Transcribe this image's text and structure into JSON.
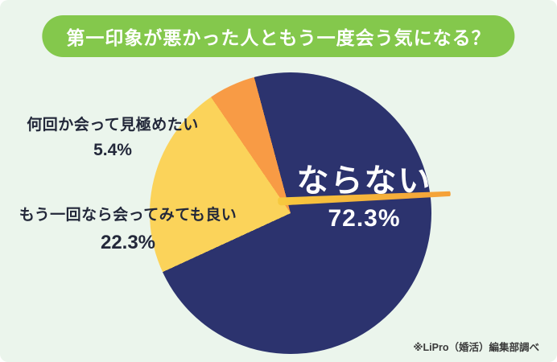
{
  "page": {
    "background_color": "#ebf5ec",
    "accent_color": "#84c84c",
    "source_note": "※LiPro（婚活）編集部調べ"
  },
  "header": {
    "title": "第一印象が悪かった人ともう一度会う気になる？"
  },
  "chart_data": {
    "type": "pie",
    "title": "第一印象が悪かった人ともう一度会う気になる？",
    "unit": "%",
    "start_angle_deg": -15,
    "direction": "clockwise",
    "legend_position": "labels-outside",
    "segments": [
      {
        "label": "ならない",
        "value": 72.3,
        "display": "72.3%",
        "color": "#2c336e",
        "label_position": "inside-right"
      },
      {
        "label": "もう一回なら会ってみても良い",
        "value": 22.3,
        "display": "22.3%",
        "color": "#fbd35a",
        "label_position": "outside-left"
      },
      {
        "label": "何回か会って見極めたい",
        "value": 5.4,
        "display": "5.4%",
        "color": "#f89b45",
        "label_position": "outside-top-left"
      }
    ],
    "source": "※LiPro（婚活）編集部調べ"
  },
  "labels": {
    "inside": {
      "text": "ならない",
      "pct": "72.3%"
    },
    "outside_top": {
      "text": "何回か会って見極めたい",
      "pct": "5.4%"
    },
    "outside_mid": {
      "text": "もう一回なら会ってみても良い",
      "pct": "22.3%"
    }
  }
}
